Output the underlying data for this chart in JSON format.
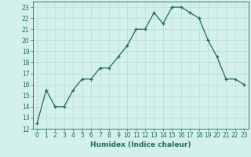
{
  "x": [
    0,
    1,
    2,
    3,
    4,
    5,
    6,
    7,
    8,
    9,
    10,
    11,
    12,
    13,
    14,
    15,
    16,
    17,
    18,
    19,
    20,
    21,
    22,
    23
  ],
  "y": [
    12.5,
    15.5,
    14.0,
    14.0,
    15.5,
    16.5,
    16.5,
    17.5,
    17.5,
    18.5,
    19.5,
    21.0,
    21.0,
    22.5,
    21.5,
    23.0,
    23.0,
    22.5,
    22.0,
    20.0,
    18.5,
    16.5,
    16.5,
    16.0
  ],
  "line_color": "#1a6b5a",
  "marker": "+",
  "marker_size": 3,
  "background_color": "#d4f0ec",
  "grid_color": "#b8dbd6",
  "xlabel": "Humidex (Indice chaleur)",
  "xlim": [
    -0.5,
    23.5
  ],
  "ylim": [
    12,
    23.5
  ],
  "yticks": [
    12,
    13,
    14,
    15,
    16,
    17,
    18,
    19,
    20,
    21,
    22,
    23
  ],
  "xticks": [
    0,
    1,
    2,
    3,
    4,
    5,
    6,
    7,
    8,
    9,
    10,
    11,
    12,
    13,
    14,
    15,
    16,
    17,
    18,
    19,
    20,
    21,
    22,
    23
  ],
  "xlabel_fontsize": 6.5,
  "tick_fontsize": 5.5,
  "line_width": 0.9,
  "marker_edge_width": 0.9
}
